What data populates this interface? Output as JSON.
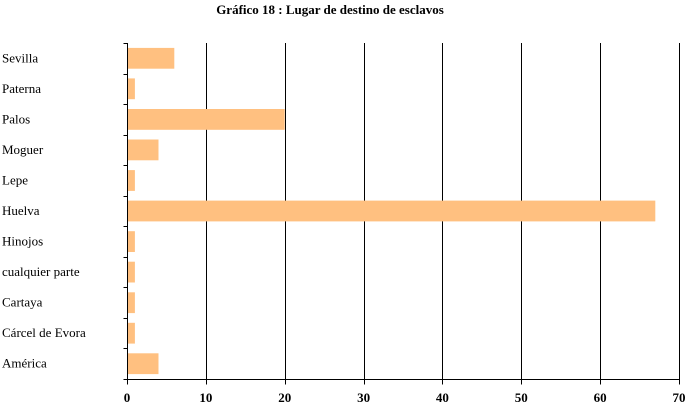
{
  "chart_data": {
    "type": "bar",
    "orientation": "horizontal",
    "title": "Gráfico 18 : Lugar de destino de esclavos",
    "categories": [
      "Sevilla",
      "Paterna",
      "Palos",
      "Moguer",
      "Lepe",
      "Huelva",
      "Hinojos",
      "cualquier parte",
      "Cartaya",
      "Cárcel de Evora",
      "América"
    ],
    "values": [
      6,
      1,
      20,
      4,
      1,
      67,
      1,
      1,
      1,
      1,
      4
    ],
    "xlim": [
      0,
      70
    ],
    "xticks": [
      0,
      10,
      20,
      30,
      40,
      50,
      60,
      70
    ],
    "grid": true,
    "bar_color": "#FFC080",
    "grid_color": "#000000"
  }
}
